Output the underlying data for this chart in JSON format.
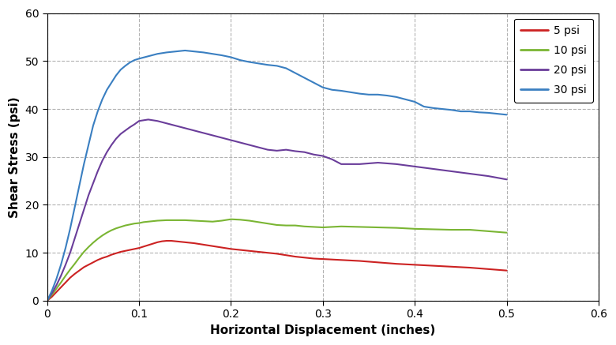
{
  "title": "",
  "xlabel": "Horizontal Displacement (inches)",
  "ylabel": "Shear Stress (psi)",
  "xlim": [
    0,
    0.6
  ],
  "ylim": [
    0,
    60
  ],
  "xticks": [
    0,
    0.1,
    0.2,
    0.3,
    0.4,
    0.5,
    0.6
  ],
  "yticks": [
    0,
    10,
    20,
    30,
    40,
    50,
    60
  ],
  "xtick_labels": [
    "0",
    "0.1",
    "0.2",
    "0.3",
    "0.4",
    "0.5",
    "0.6"
  ],
  "ytick_labels": [
    "0",
    "10",
    "20",
    "30",
    "40",
    "50",
    "60"
  ],
  "legend_labels": [
    "5 psi",
    "10 psi",
    "20 psi",
    "30 psi"
  ],
  "line_colors": [
    "#cc2222",
    "#7ab533",
    "#6a3d9a",
    "#3a7fc1"
  ],
  "background_color": "#ffffff",
  "grid_color": "#aaaaaa",
  "curves": {
    "5psi": {
      "x": [
        0,
        0.005,
        0.01,
        0.015,
        0.02,
        0.025,
        0.03,
        0.035,
        0.04,
        0.045,
        0.05,
        0.055,
        0.06,
        0.065,
        0.07,
        0.075,
        0.08,
        0.085,
        0.09,
        0.095,
        0.1,
        0.105,
        0.11,
        0.115,
        0.12,
        0.125,
        0.13,
        0.135,
        0.14,
        0.145,
        0.15,
        0.16,
        0.17,
        0.18,
        0.19,
        0.2,
        0.21,
        0.22,
        0.23,
        0.24,
        0.25,
        0.26,
        0.27,
        0.28,
        0.29,
        0.3,
        0.32,
        0.34,
        0.36,
        0.38,
        0.4,
        0.42,
        0.44,
        0.46,
        0.48,
        0.5
      ],
      "y": [
        0,
        0.8,
        1.8,
        2.8,
        3.8,
        4.8,
        5.6,
        6.3,
        7.0,
        7.5,
        8.0,
        8.5,
        8.9,
        9.2,
        9.6,
        9.9,
        10.2,
        10.4,
        10.6,
        10.8,
        11.0,
        11.3,
        11.6,
        11.9,
        12.2,
        12.4,
        12.5,
        12.5,
        12.4,
        12.3,
        12.2,
        12.0,
        11.7,
        11.4,
        11.1,
        10.8,
        10.6,
        10.4,
        10.2,
        10.0,
        9.8,
        9.5,
        9.2,
        9.0,
        8.8,
        8.7,
        8.5,
        8.3,
        8.0,
        7.7,
        7.5,
        7.3,
        7.1,
        6.9,
        6.6,
        6.3
      ]
    },
    "10psi": {
      "x": [
        0,
        0.005,
        0.01,
        0.015,
        0.02,
        0.025,
        0.03,
        0.035,
        0.04,
        0.045,
        0.05,
        0.055,
        0.06,
        0.065,
        0.07,
        0.075,
        0.08,
        0.085,
        0.09,
        0.095,
        0.1,
        0.105,
        0.11,
        0.115,
        0.12,
        0.13,
        0.14,
        0.15,
        0.16,
        0.17,
        0.18,
        0.19,
        0.2,
        0.21,
        0.22,
        0.23,
        0.24,
        0.25,
        0.26,
        0.27,
        0.28,
        0.3,
        0.32,
        0.34,
        0.36,
        0.38,
        0.4,
        0.42,
        0.44,
        0.46,
        0.48,
        0.5
      ],
      "y": [
        0,
        1.2,
        2.5,
        3.8,
        5.2,
        6.5,
        7.7,
        9.0,
        10.2,
        11.2,
        12.1,
        12.9,
        13.6,
        14.2,
        14.7,
        15.1,
        15.4,
        15.7,
        15.9,
        16.1,
        16.2,
        16.4,
        16.5,
        16.6,
        16.7,
        16.8,
        16.8,
        16.8,
        16.7,
        16.6,
        16.5,
        16.7,
        17.0,
        16.9,
        16.7,
        16.4,
        16.1,
        15.8,
        15.7,
        15.7,
        15.5,
        15.3,
        15.5,
        15.4,
        15.3,
        15.2,
        15.0,
        14.9,
        14.8,
        14.8,
        14.5,
        14.2
      ]
    },
    "20psi": {
      "x": [
        0,
        0.005,
        0.01,
        0.015,
        0.02,
        0.025,
        0.03,
        0.035,
        0.04,
        0.045,
        0.05,
        0.055,
        0.06,
        0.065,
        0.07,
        0.075,
        0.08,
        0.085,
        0.09,
        0.095,
        0.1,
        0.11,
        0.12,
        0.13,
        0.14,
        0.15,
        0.16,
        0.17,
        0.18,
        0.19,
        0.2,
        0.21,
        0.22,
        0.23,
        0.24,
        0.25,
        0.26,
        0.27,
        0.28,
        0.29,
        0.3,
        0.31,
        0.32,
        0.34,
        0.36,
        0.38,
        0.4,
        0.42,
        0.44,
        0.46,
        0.48,
        0.5
      ],
      "y": [
        0,
        1.5,
        3.2,
        5.2,
        7.5,
        10.0,
        13.0,
        16.0,
        19.0,
        22.0,
        24.5,
        27.0,
        29.2,
        31.0,
        32.5,
        33.8,
        34.8,
        35.5,
        36.2,
        36.8,
        37.5,
        37.8,
        37.5,
        37.0,
        36.5,
        36.0,
        35.5,
        35.0,
        34.5,
        34.0,
        33.5,
        33.0,
        32.5,
        32.0,
        31.5,
        31.3,
        31.5,
        31.2,
        31.0,
        30.5,
        30.2,
        29.5,
        28.5,
        28.5,
        28.8,
        28.5,
        28.0,
        27.5,
        27.0,
        26.5,
        26.0,
        25.3
      ]
    },
    "30psi": {
      "x": [
        0,
        0.005,
        0.01,
        0.015,
        0.02,
        0.025,
        0.03,
        0.035,
        0.04,
        0.045,
        0.05,
        0.055,
        0.06,
        0.065,
        0.07,
        0.075,
        0.08,
        0.085,
        0.09,
        0.095,
        0.1,
        0.11,
        0.12,
        0.13,
        0.14,
        0.15,
        0.16,
        0.17,
        0.18,
        0.19,
        0.2,
        0.21,
        0.22,
        0.23,
        0.24,
        0.25,
        0.26,
        0.27,
        0.28,
        0.29,
        0.3,
        0.31,
        0.32,
        0.33,
        0.34,
        0.35,
        0.36,
        0.37,
        0.38,
        0.39,
        0.4,
        0.41,
        0.42,
        0.43,
        0.44,
        0.45,
        0.46,
        0.47,
        0.48,
        0.49,
        0.5
      ],
      "y": [
        0,
        2.0,
        4.5,
        7.5,
        11.0,
        15.0,
        19.5,
        24.0,
        28.5,
        32.5,
        36.5,
        39.5,
        42.0,
        44.0,
        45.5,
        47.0,
        48.2,
        49.0,
        49.7,
        50.2,
        50.5,
        51.0,
        51.5,
        51.8,
        52.0,
        52.2,
        52.0,
        51.8,
        51.5,
        51.2,
        50.8,
        50.2,
        49.8,
        49.5,
        49.2,
        49.0,
        48.5,
        47.5,
        46.5,
        45.5,
        44.5,
        44.0,
        43.8,
        43.5,
        43.2,
        43.0,
        43.0,
        42.8,
        42.5,
        42.0,
        41.5,
        40.5,
        40.2,
        40.0,
        39.8,
        39.5,
        39.5,
        39.3,
        39.2,
        39.0,
        38.8
      ]
    }
  }
}
